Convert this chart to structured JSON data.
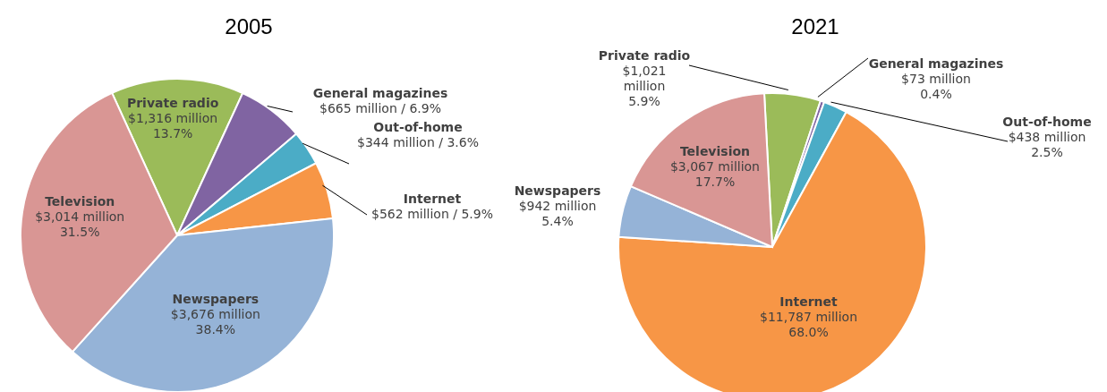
{
  "chart_data": [
    {
      "type": "pie",
      "title": "2005",
      "categories": [
        "Private radio",
        "General magazines",
        "Out-of-home",
        "Internet",
        "Newspapers",
        "Television"
      ],
      "values": [
        13.7,
        6.9,
        3.6,
        5.9,
        38.4,
        31.5
      ],
      "colors": [
        "#9bbb59",
        "#8064a2",
        "#4bacc6",
        "#f79646",
        "#95b3d7",
        "#d99694"
      ],
      "value_labels": [
        "$1,316 million\n13.7%",
        "$665 million / 6.9%",
        "$344 million / 3.6%",
        "$562 million / 5.9%",
        "$3,676 million\n38.4%",
        "$3,014 million\n31.5%"
      ]
    },
    {
      "type": "pie",
      "title": "2021",
      "categories": [
        "Private radio",
        "General magazines",
        "Out-of-home",
        "Internet",
        "Newspapers",
        "Television"
      ],
      "values": [
        5.9,
        0.4,
        2.5,
        68.0,
        5.4,
        17.7
      ],
      "colors": [
        "#9bbb59",
        "#8064a2",
        "#4bacc6",
        "#f79646",
        "#95b3d7",
        "#d99694"
      ],
      "value_labels": [
        "$1,021\nmillion\n5.9%",
        "$73 million\n0.4%",
        "$438 million\n2.5%",
        "$11,787 million\n68.0%",
        "$942 million\n5.4%",
        "$3,067 million\n17.7%"
      ]
    }
  ]
}
